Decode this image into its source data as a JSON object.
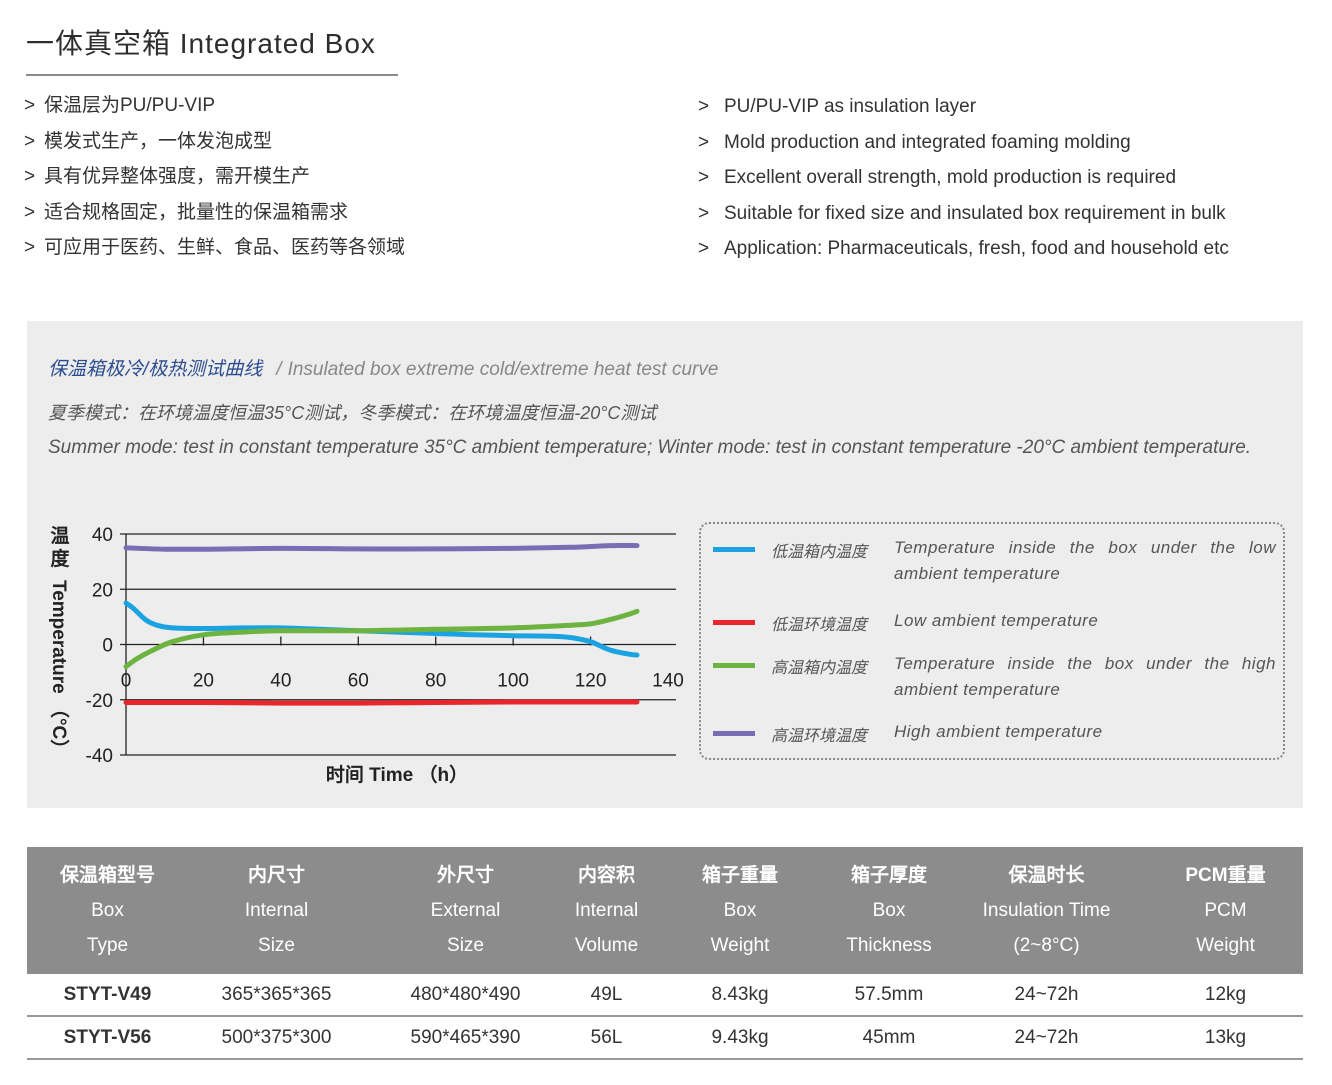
{
  "header": {
    "title": "一体真空箱 Integrated Box"
  },
  "features_cn": [
    "保温层为PU/PU-VIP",
    "模发式生产，一体发泡成型",
    "具有优异整体强度，需开模生产",
    "适合规格固定，批量性的保温箱需求",
    "可应用于医药、生鲜、食品、医药等各领域"
  ],
  "features_en": [
    "PU/PU-VIP as insulation layer",
    "Mold production and integrated foaming molding",
    "Excellent overall strength, mold production is required",
    "Suitable for fixed size and insulated box requirement in bulk",
    "Application: Pharmaceuticals, fresh, food and household etc"
  ],
  "bullet_marker": ">",
  "test_panel": {
    "heading_cn": "保温箱极冷/极热测试曲线",
    "heading_sep": "/",
    "heading_en": "Insulated box extreme cold/extreme heat test curve",
    "desc_cn": "夏季模式：在环境温度恒温35°C测试，冬季模式：在环境温度恒温-20°C测试",
    "desc_en": "Summer mode: test in constant temperature 35°C ambient temperature; Winter mode: test in constant temperature -20°C ambient temperature."
  },
  "chart_data": {
    "type": "line",
    "xlabel": "时间 Time （h）",
    "ylabel_cn": "温度",
    "ylabel_en": "Temperature （°C）",
    "xlim": [
      0,
      140
    ],
    "ylim": [
      -40,
      40
    ],
    "x_ticks": [
      0,
      20,
      40,
      60,
      80,
      100,
      120,
      140
    ],
    "y_ticks": [
      40,
      20,
      0,
      -20,
      -40
    ],
    "grid": "horizontal lines at y ticks",
    "legend_position": "right",
    "series": [
      {
        "name_cn": "低温箱内温度",
        "name_en": "Temperature inside the box under the low ambient temperature",
        "color": "#1aa3e0",
        "x": [
          0,
          2,
          5,
          8,
          12,
          20,
          30,
          40,
          50,
          60,
          70,
          80,
          90,
          100,
          110,
          115,
          120,
          125,
          130,
          132
        ],
        "y": [
          15,
          13,
          9,
          7,
          6,
          5.8,
          6,
          6,
          5.5,
          5,
          4.5,
          4,
          3.5,
          3.2,
          3,
          2.5,
          1,
          -2,
          -3.5,
          -3.8
        ]
      },
      {
        "name_cn": "低温环境温度",
        "name_en": "Low ambient temperature",
        "color": "#e8262c",
        "x": [
          0,
          20,
          40,
          60,
          80,
          100,
          120,
          132
        ],
        "y": [
          -21,
          -21,
          -21.2,
          -21.2,
          -21,
          -20.8,
          -20.8,
          -20.8
        ]
      },
      {
        "name_cn": "高温箱内温度",
        "name_en": "Temperature inside the box under the high ambient temperature",
        "color": "#6db33f",
        "x": [
          0,
          3,
          7,
          12,
          20,
          30,
          40,
          60,
          80,
          100,
          115,
          120,
          125,
          130,
          132
        ],
        "y": [
          -8,
          -5,
          -2,
          1,
          3.5,
          4.5,
          5,
          5,
          5.5,
          6,
          7,
          7.5,
          9,
          11,
          12
        ]
      },
      {
        "name_cn": "高温环境温度",
        "name_en": "High ambient temperature",
        "color": "#7b6db4",
        "x": [
          0,
          10,
          20,
          40,
          60,
          80,
          100,
          115,
          125,
          132
        ],
        "y": [
          35,
          34.5,
          34.5,
          34.8,
          34.6,
          34.6,
          34.8,
          35.2,
          35.8,
          35.8
        ]
      }
    ]
  },
  "spec_table": {
    "columns": [
      {
        "cn": "保温箱型号",
        "en1": "Box",
        "en2": "Type"
      },
      {
        "cn": "内尺寸",
        "en1": "Internal",
        "en2": "Size"
      },
      {
        "cn": "外尺寸",
        "en1": "External",
        "en2": "Size"
      },
      {
        "cn": "内容积",
        "en1": "Internal",
        "en2": "Volume"
      },
      {
        "cn": "箱子重量",
        "en1": "Box",
        "en2": "Weight"
      },
      {
        "cn": "箱子厚度",
        "en1": "Box",
        "en2": "Thickness"
      },
      {
        "cn": "保温时长",
        "en1": "Insulation Time",
        "en2": "(2~8°C)"
      },
      {
        "cn": "PCM重量",
        "en1": "PCM",
        "en2": "Weight"
      }
    ],
    "rows": [
      [
        "STYT-V49",
        "365*365*365",
        "480*480*490",
        "49L",
        "8.43kg",
        "57.5mm",
        "24~72h",
        "12kg"
      ],
      [
        "STYT-V56",
        "500*375*300",
        "590*465*390",
        "56L",
        "9.43kg",
        "45mm",
        "24~72h",
        "13kg"
      ]
    ]
  }
}
